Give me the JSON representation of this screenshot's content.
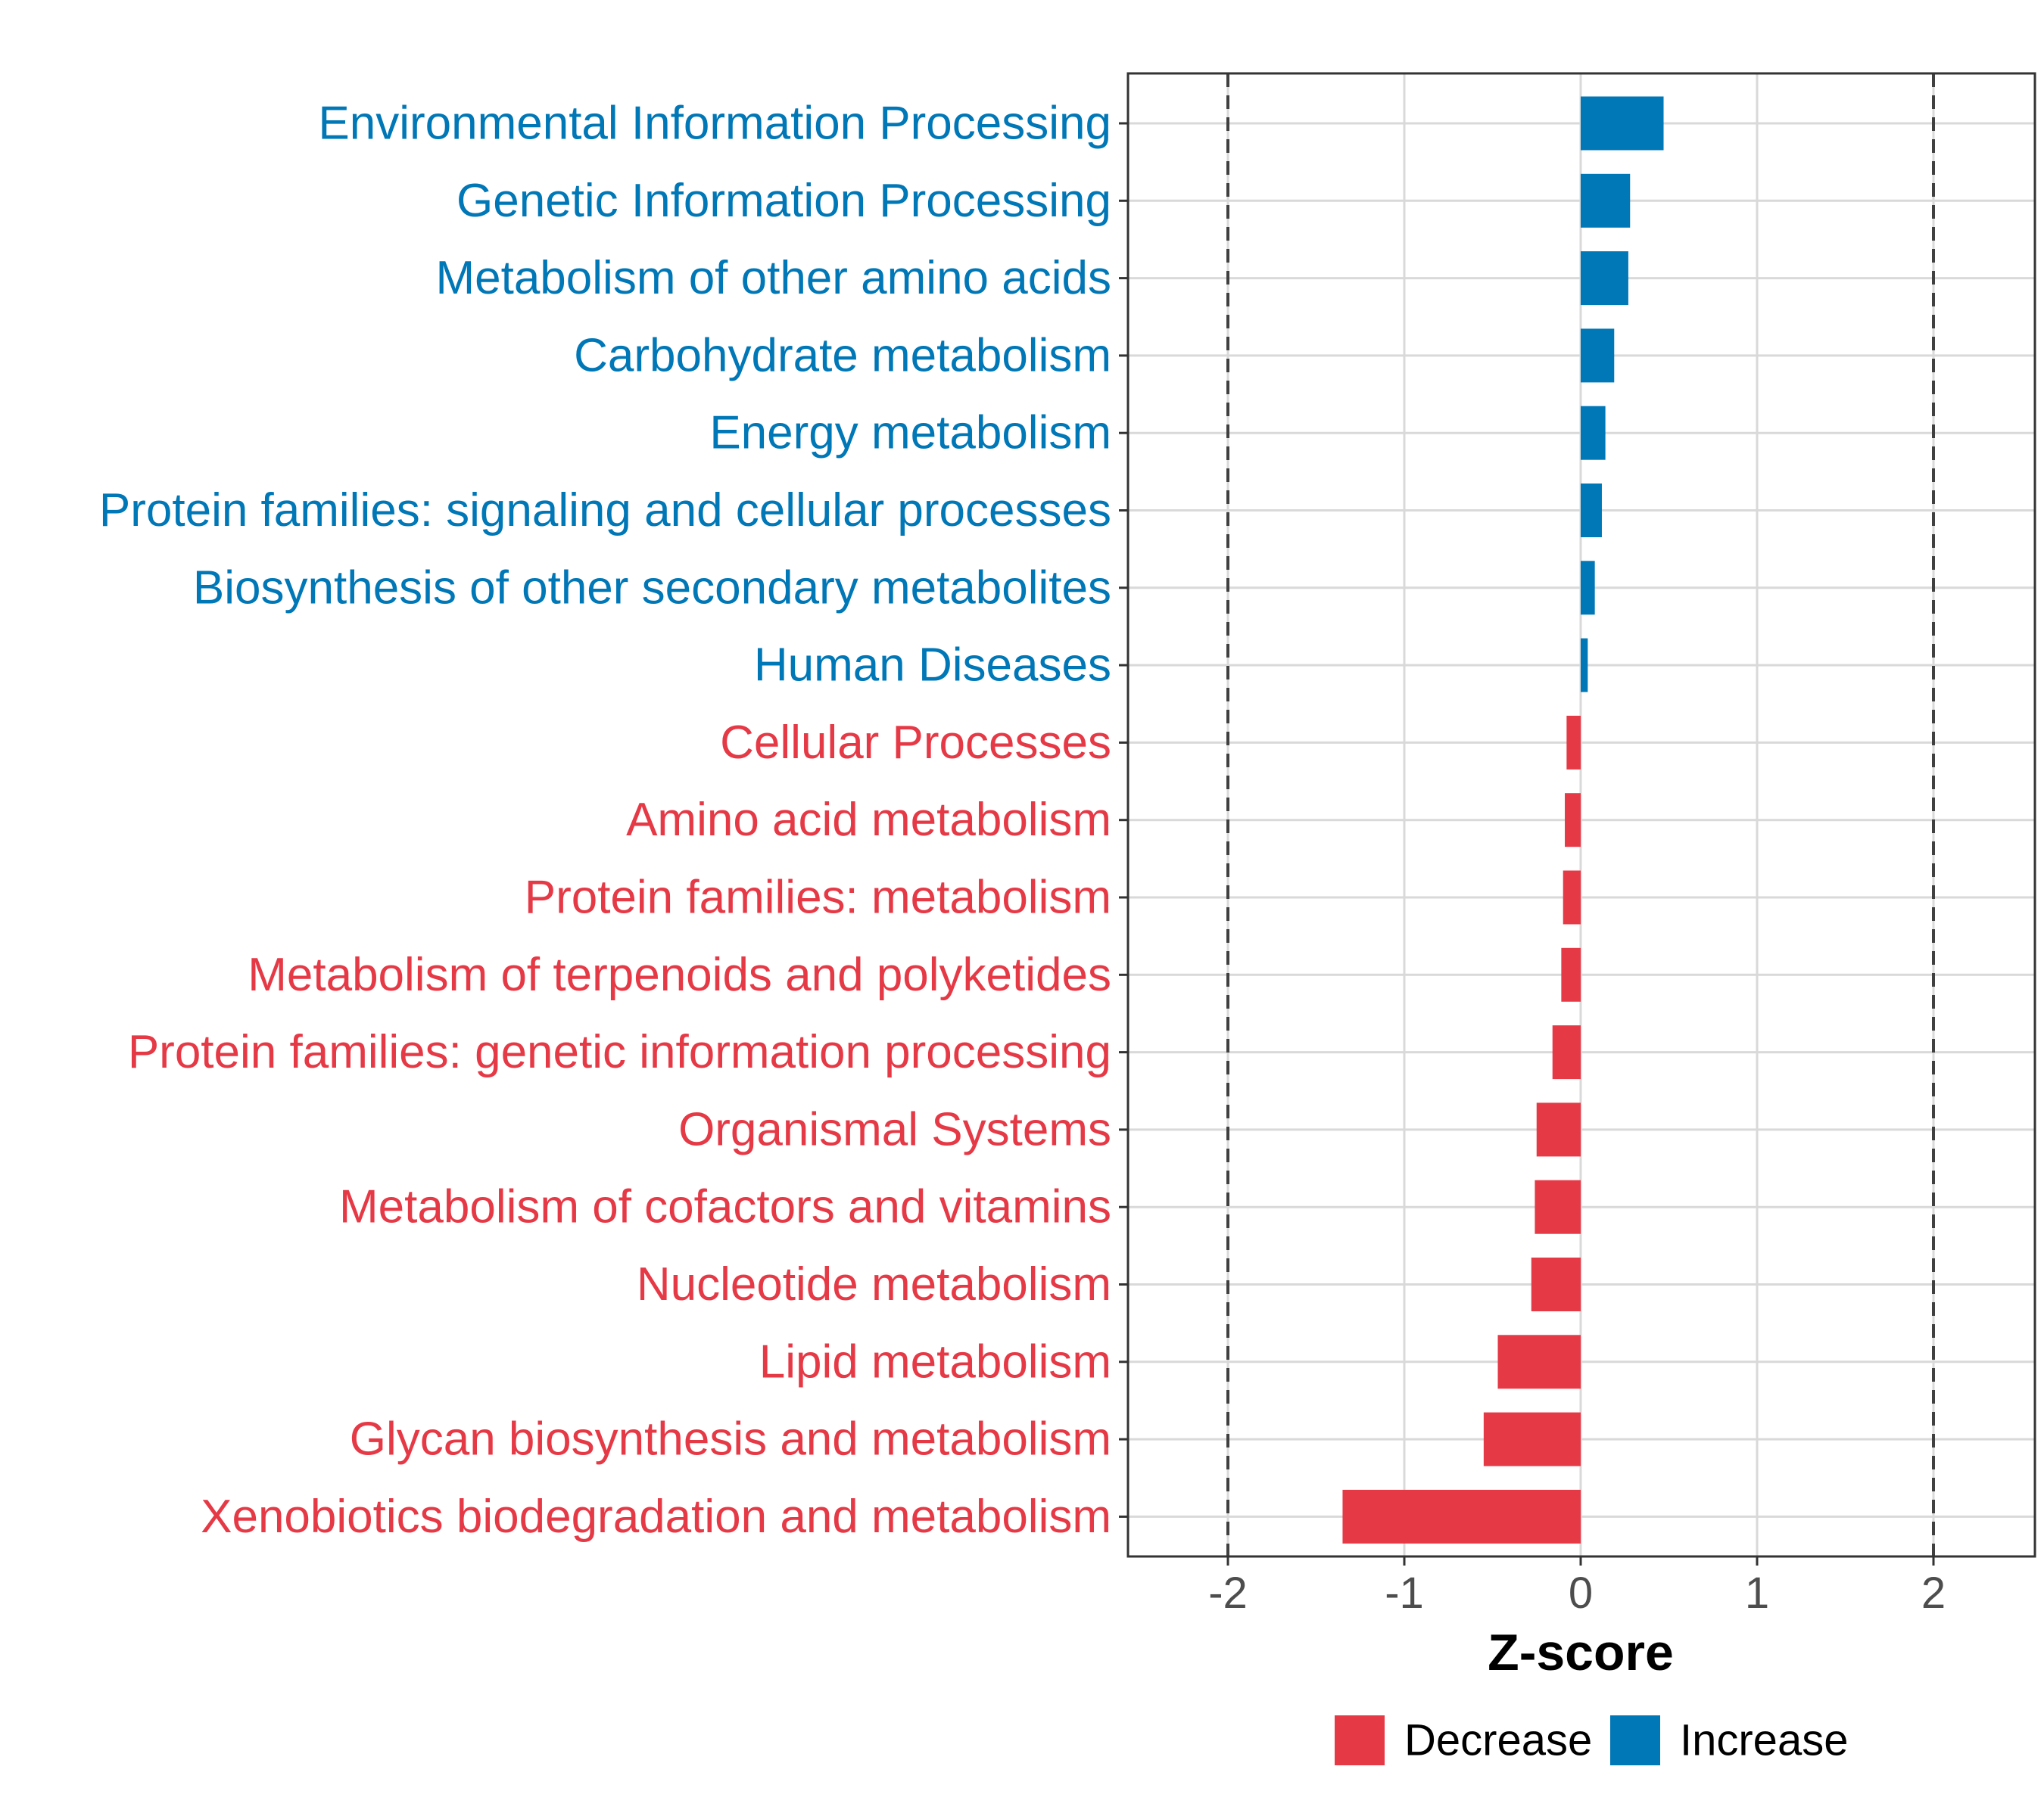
{
  "chart_data": {
    "type": "bar",
    "orientation": "horizontal",
    "categories": [
      "Environmental Information Processing",
      "Genetic Information Processing",
      "Metabolism of other amino acids",
      "Carbohydrate metabolism",
      "Energy metabolism",
      "Protein families: signaling and cellular processes",
      "Biosynthesis of other secondary metabolites",
      "Human Diseases",
      "Cellular Processes",
      "Amino acid metabolism",
      "Protein families: metabolism",
      "Metabolism of terpenoids and polyketides",
      "Protein families: genetic information processing",
      "Organismal Systems",
      "Metabolism of cofactors and vitamins",
      "Nucleotide metabolism",
      "Lipid metabolism",
      "Glycan biosynthesis and metabolism",
      "Xenobiotics biodegradation and metabolism"
    ],
    "values": [
      0.47,
      0.28,
      0.27,
      0.19,
      0.14,
      0.12,
      0.08,
      0.04,
      -0.08,
      -0.09,
      -0.1,
      -0.11,
      -0.16,
      -0.25,
      -0.26,
      -0.28,
      -0.47,
      -0.55,
      -1.35
    ],
    "xlabel": "Z-score",
    "xlim": [
      -2.57,
      2.57
    ],
    "xticks": [
      -2,
      -1,
      0,
      1,
      2
    ],
    "xtick_labels": [
      "-2",
      "-1",
      "0",
      "1",
      "2"
    ],
    "reference_lines": [
      -2,
      2
    ],
    "legend": {
      "position": "bottom",
      "items": [
        {
          "label": "Decrease",
          "color": "#e63946"
        },
        {
          "label": "Increase",
          "color": "#0077b6"
        }
      ]
    },
    "colors": {
      "increase": "#0077b6",
      "decrease": "#e63946",
      "grid": "#d9d9d9",
      "reference_line": "#404040",
      "panel_border": "#333333"
    }
  }
}
